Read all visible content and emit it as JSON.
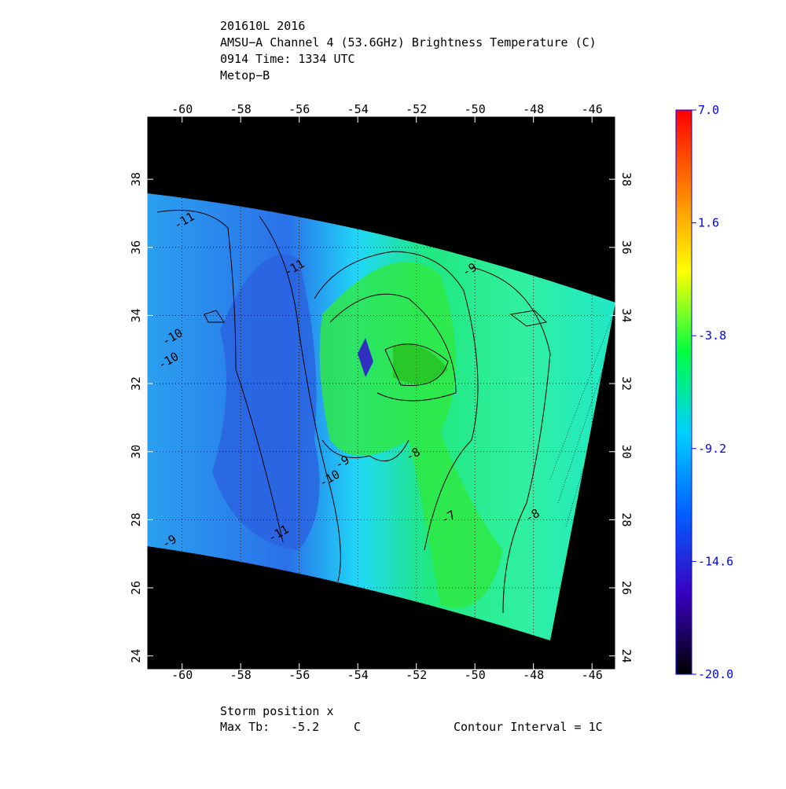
{
  "header": {
    "lines": [
      "201610L 2016",
      "AMSU−A Channel 4 (53.6GHz) Brightness Temperature (C)",
      "0914 Time: 1334 UTC",
      "Metop−B"
    ]
  },
  "chart_data": {
    "type": "contour",
    "xlim": [
      -61.2,
      -45.2
    ],
    "ylim": [
      23.6,
      39.85
    ],
    "xticks": [
      -60,
      -58,
      -56,
      -54,
      -52,
      -50,
      -48,
      -46
    ],
    "yticks": [
      24,
      26,
      28,
      30,
      32,
      34,
      36,
      38
    ],
    "grid": true,
    "contour_labels": [
      "-11",
      "-11",
      "-10",
      "-10",
      "-9",
      "-9",
      "-9",
      "-8",
      "-8",
      "-7",
      "-10",
      "-11"
    ],
    "colorbar": {
      "lim": [
        -20,
        7
      ],
      "ticks": [
        {
          "value": 7,
          "label": "7.0"
        },
        {
          "value": 1.6,
          "label": "1.6"
        },
        {
          "value": -3.8,
          "label": "-3.8"
        },
        {
          "value": -9.2,
          "label": "-9.2"
        },
        {
          "value": -14.6,
          "label": "-14.6"
        },
        {
          "value": -20,
          "label": "-20.0"
        }
      ],
      "colors": [
        "#000000",
        "#3a00c0",
        "#0060ff",
        "#00d0ff",
        "#00ff40",
        "#ffff00",
        "#ff8000",
        "#ff0000"
      ]
    }
  },
  "footer": {
    "storm": "Storm position x",
    "max_label": "Max Tb:",
    "max_value": -5.2,
    "max_unit": "C",
    "interval": "Contour Interval = 1C"
  }
}
